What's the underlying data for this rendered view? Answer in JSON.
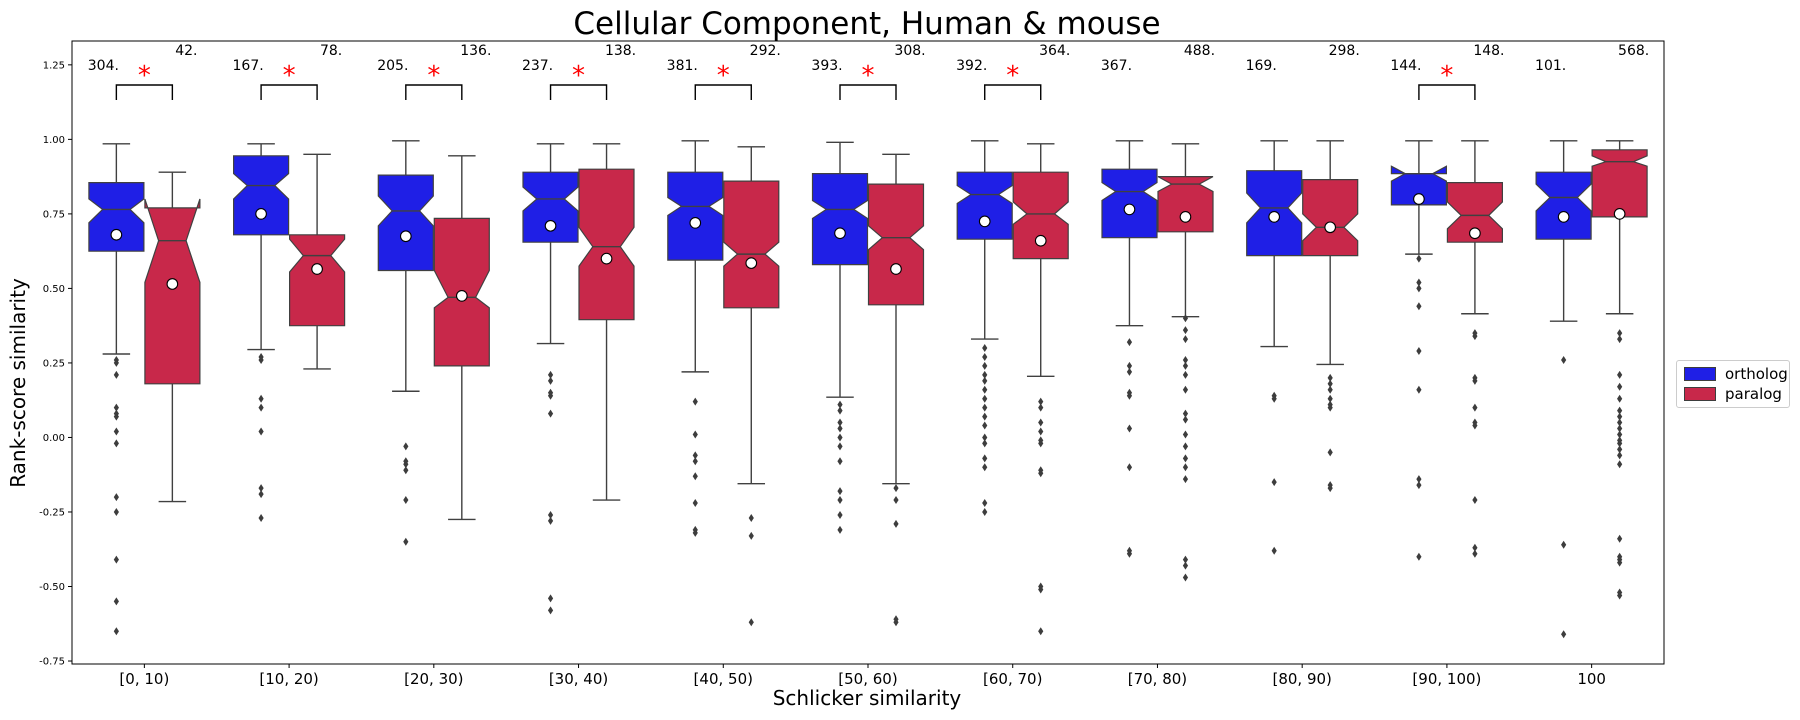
{
  "chart_data": {
    "type": "boxplot",
    "title": "Cellular Component, Human & mouse",
    "xlabel": "Schlicker similarity",
    "ylabel": "Rank-score similarity",
    "ylim": [
      -0.76,
      1.33
    ],
    "yticks": [
      -0.75,
      -0.5,
      -0.25,
      0.0,
      0.25,
      0.5,
      0.75,
      1.0,
      1.25
    ],
    "ytick_labels": [
      "-0.75",
      "-0.50",
      "-0.25",
      "0.00",
      "0.25",
      "0.50",
      "0.75",
      "1.00",
      "1.25"
    ],
    "notched": true,
    "categories": [
      "[0, 10)",
      "[10, 20)",
      "[20, 30)",
      "[30, 40)",
      "[40, 50)",
      "[50, 60)",
      "[60, 70)",
      "[70, 80)",
      "[80, 90)",
      "[90, 100)",
      "100"
    ],
    "legend_position": "center-right, outside plot",
    "series": [
      {
        "name": "ortholog",
        "color": "#1f1fe6",
        "counts": [
          "304.",
          "167.",
          "205.",
          "237.",
          "381.",
          "393.",
          "392.",
          "367.",
          "169.",
          "144.",
          "101."
        ],
        "boxes": [
          {
            "q1": 0.625,
            "median": 0.765,
            "q3": 0.855,
            "whislo": 0.28,
            "whishi": 0.985,
            "mean": 0.68,
            "notch_lo": 0.72,
            "notch_hi": 0.8,
            "fliers": [
              0.26,
              0.25,
              0.21,
              0.1,
              0.08,
              0.07,
              0.02,
              -0.02,
              -0.2,
              -0.25,
              -0.41,
              -0.55,
              -0.65
            ]
          },
          {
            "q1": 0.68,
            "median": 0.845,
            "q3": 0.945,
            "whislo": 0.295,
            "whishi": 0.985,
            "mean": 0.75,
            "notch_lo": 0.8,
            "notch_hi": 0.885,
            "fliers": [
              0.27,
              0.26,
              0.13,
              0.1,
              0.02,
              -0.17,
              -0.19,
              -0.27
            ]
          },
          {
            "q1": 0.56,
            "median": 0.76,
            "q3": 0.88,
            "whislo": 0.155,
            "whishi": 0.995,
            "mean": 0.675,
            "notch_lo": 0.71,
            "notch_hi": 0.81,
            "fliers": [
              -0.03,
              -0.08,
              -0.09,
              -0.11,
              -0.21,
              -0.35
            ]
          },
          {
            "q1": 0.655,
            "median": 0.8,
            "q3": 0.89,
            "whislo": 0.315,
            "whishi": 0.985,
            "mean": 0.71,
            "notch_lo": 0.76,
            "notch_hi": 0.84,
            "fliers": [
              0.21,
              0.19,
              0.15,
              0.14,
              0.08,
              -0.26,
              -0.28,
              -0.54,
              -0.58
            ]
          },
          {
            "q1": 0.595,
            "median": 0.775,
            "q3": 0.89,
            "whislo": 0.22,
            "whishi": 0.995,
            "mean": 0.72,
            "notch_lo": 0.745,
            "notch_hi": 0.805,
            "fliers": [
              0.12,
              0.01,
              -0.06,
              -0.08,
              -0.13,
              -0.22,
              -0.31,
              -0.32
            ]
          },
          {
            "q1": 0.58,
            "median": 0.765,
            "q3": 0.885,
            "whislo": 0.135,
            "whishi": 0.99,
            "mean": 0.685,
            "notch_lo": 0.735,
            "notch_hi": 0.795,
            "fliers": [
              0.11,
              0.09,
              0.05,
              0.03,
              0.0,
              -0.03,
              -0.08,
              -0.18,
              -0.21,
              -0.26,
              -0.31
            ]
          },
          {
            "q1": 0.665,
            "median": 0.815,
            "q3": 0.89,
            "whislo": 0.33,
            "whishi": 0.995,
            "mean": 0.725,
            "notch_lo": 0.785,
            "notch_hi": 0.845,
            "fliers": [
              0.3,
              0.27,
              0.24,
              0.21,
              0.19,
              0.16,
              0.13,
              0.1,
              0.07,
              0.04,
              0.0,
              -0.02,
              -0.07,
              -0.1,
              -0.22,
              -0.25
            ]
          },
          {
            "q1": 0.67,
            "median": 0.825,
            "q3": 0.9,
            "whislo": 0.375,
            "whishi": 0.995,
            "mean": 0.765,
            "notch_lo": 0.795,
            "notch_hi": 0.855,
            "fliers": [
              0.32,
              0.24,
              0.22,
              0.15,
              0.14,
              0.03,
              -0.1,
              -0.38,
              -0.39
            ]
          },
          {
            "q1": 0.61,
            "median": 0.77,
            "q3": 0.895,
            "whislo": 0.305,
            "whishi": 0.995,
            "mean": 0.74,
            "notch_lo": 0.72,
            "notch_hi": 0.82,
            "fliers": [
              0.14,
              0.13,
              -0.15,
              -0.38
            ]
          },
          {
            "q1": 0.78,
            "median": 0.885,
            "q3": 0.885,
            "whislo": 0.615,
            "whishi": 0.995,
            "mean": 0.8,
            "notch_lo": 0.86,
            "notch_hi": 0.91,
            "fliers": [
              0.6,
              0.52,
              0.5,
              0.44,
              0.29,
              0.16,
              -0.14,
              -0.16,
              -0.4
            ]
          },
          {
            "q1": 0.665,
            "median": 0.805,
            "q3": 0.89,
            "whislo": 0.39,
            "whishi": 0.995,
            "mean": 0.74,
            "notch_lo": 0.76,
            "notch_hi": 0.85,
            "fliers": [
              0.26,
              -0.36,
              -0.66
            ]
          }
        ]
      },
      {
        "name": "paralog",
        "color": "#c8284a",
        "counts": [
          "42.",
          "78.",
          "136.",
          "138.",
          "292.",
          "308.",
          "364.",
          "488.",
          "298.",
          "148.",
          "568."
        ],
        "boxes": [
          {
            "q1": 0.18,
            "median": 0.66,
            "q3": 0.77,
            "whislo": -0.215,
            "whishi": 0.89,
            "mean": 0.515,
            "notch_lo": 0.52,
            "notch_hi": 0.8,
            "fliers": []
          },
          {
            "q1": 0.375,
            "median": 0.61,
            "q3": 0.68,
            "whislo": 0.23,
            "whishi": 0.95,
            "mean": 0.565,
            "notch_lo": 0.555,
            "notch_hi": 0.665,
            "fliers": []
          },
          {
            "q1": 0.24,
            "median": 0.47,
            "q3": 0.735,
            "whislo": -0.275,
            "whishi": 0.945,
            "mean": 0.475,
            "notch_lo": 0.435,
            "notch_hi": 0.56,
            "fliers": []
          },
          {
            "q1": 0.395,
            "median": 0.64,
            "q3": 0.9,
            "whislo": -0.21,
            "whishi": 0.985,
            "mean": 0.6,
            "notch_lo": 0.575,
            "notch_hi": 0.705,
            "fliers": []
          },
          {
            "q1": 0.435,
            "median": 0.615,
            "q3": 0.86,
            "whislo": -0.155,
            "whishi": 0.975,
            "mean": 0.585,
            "notch_lo": 0.575,
            "notch_hi": 0.655,
            "fliers": [
              -0.27,
              -0.33,
              -0.62
            ]
          },
          {
            "q1": 0.445,
            "median": 0.67,
            "q3": 0.85,
            "whislo": -0.155,
            "whishi": 0.95,
            "mean": 0.565,
            "notch_lo": 0.63,
            "notch_hi": 0.71,
            "fliers": [
              -0.17,
              -0.21,
              -0.29,
              -0.61,
              -0.62
            ]
          },
          {
            "q1": 0.6,
            "median": 0.75,
            "q3": 0.89,
            "whislo": 0.205,
            "whishi": 0.985,
            "mean": 0.66,
            "notch_lo": 0.715,
            "notch_hi": 0.79,
            "fliers": [
              0.12,
              0.1,
              0.05,
              0.02,
              -0.01,
              -0.02,
              -0.11,
              -0.12,
              -0.5,
              -0.51,
              -0.65
            ]
          },
          {
            "q1": 0.69,
            "median": 0.85,
            "q3": 0.875,
            "whislo": 0.405,
            "whishi": 0.985,
            "mean": 0.74,
            "notch_lo": 0.825,
            "notch_hi": 0.875,
            "fliers": [
              0.4,
              0.36,
              0.33,
              0.26,
              0.24,
              0.21,
              0.16,
              0.08,
              0.06,
              0.01,
              -0.03,
              -0.07,
              -0.1,
              -0.14,
              -0.41,
              -0.43,
              -0.47
            ]
          },
          {
            "q1": 0.61,
            "median": 0.705,
            "q3": 0.865,
            "whislo": 0.245,
            "whishi": 0.995,
            "mean": 0.705,
            "notch_lo": 0.66,
            "notch_hi": 0.75,
            "fliers": [
              0.2,
              0.18,
              0.16,
              0.13,
              0.11,
              0.1,
              -0.05,
              -0.16,
              -0.17
            ]
          },
          {
            "q1": 0.655,
            "median": 0.745,
            "q3": 0.855,
            "whislo": 0.415,
            "whishi": 0.995,
            "mean": 0.685,
            "notch_lo": 0.7,
            "notch_hi": 0.79,
            "fliers": [
              0.35,
              0.34,
              0.2,
              0.19,
              0.1,
              0.05,
              0.04,
              -0.21,
              -0.37,
              -0.39
            ]
          },
          {
            "q1": 0.74,
            "median": 0.925,
            "q3": 0.965,
            "whislo": 0.415,
            "whishi": 0.995,
            "mean": 0.75,
            "notch_lo": 0.91,
            "notch_hi": 0.945,
            "fliers": [
              0.35,
              0.33,
              0.21,
              0.17,
              0.13,
              0.09,
              0.07,
              0.05,
              0.03,
              0.01,
              -0.01,
              -0.02,
              -0.04,
              -0.06,
              -0.09,
              -0.34,
              -0.4,
              -0.41,
              -0.42,
              -0.52,
              -0.53
            ]
          }
        ]
      }
    ],
    "significance": {
      "marker": "*",
      "color": "#ff0000",
      "categories": [
        "[0, 10)",
        "[10, 20)",
        "[20, 30)",
        "[30, 40)",
        "[40, 50)",
        "[50, 60)",
        "[60, 70)",
        "[90, 100)"
      ]
    }
  }
}
